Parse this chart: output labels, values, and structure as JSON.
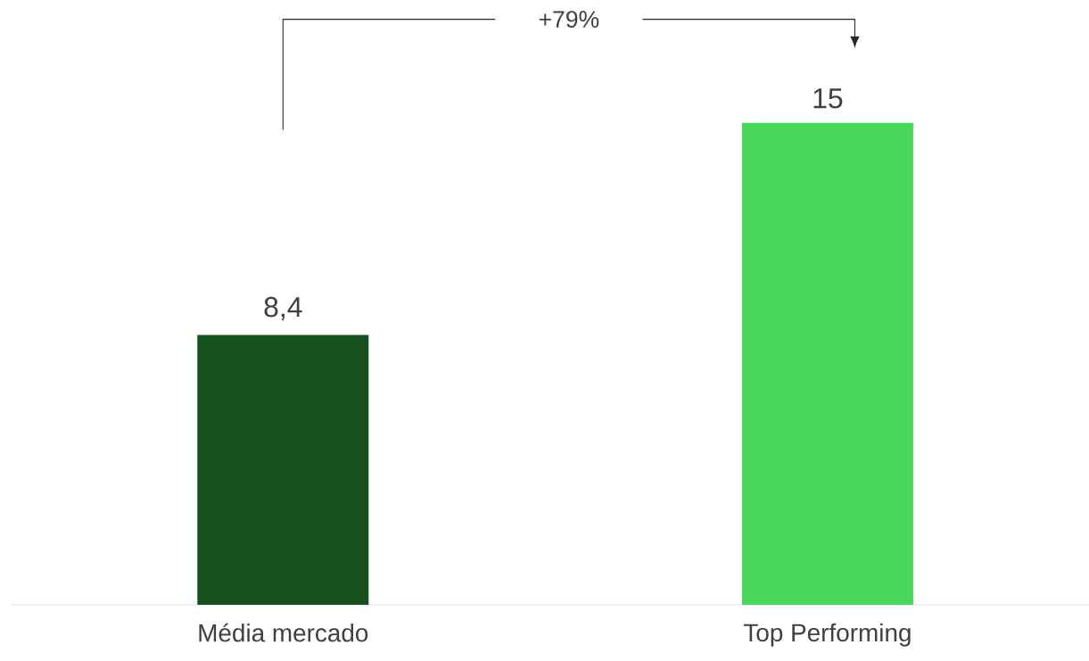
{
  "chart_data": {
    "type": "bar",
    "categories": [
      "Média mercado",
      "Top Performing"
    ],
    "values": [
      8.4,
      15
    ],
    "colors": [
      "#15501e",
      "#48d75b"
    ],
    "value_labels": [
      "8,4",
      "15"
    ],
    "annotations": [
      "+79%"
    ]
  }
}
